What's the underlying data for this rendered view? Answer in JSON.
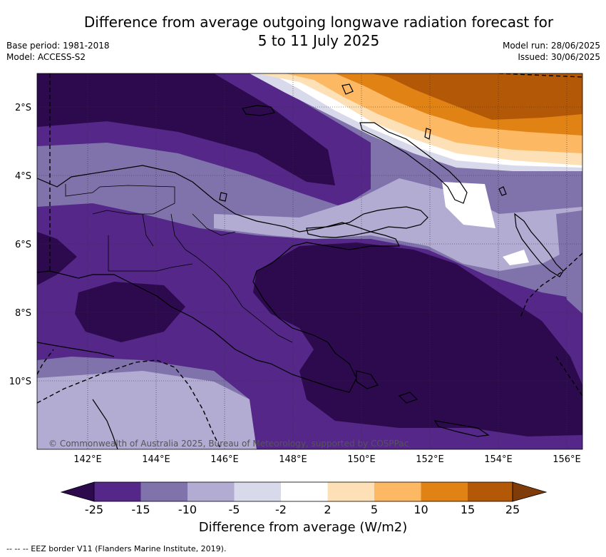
{
  "header": {
    "title_line1": "Difference from average outgoing longwave radiation forecast for",
    "title_line2": "5 to 11 July 2025",
    "base_period": "Base period: 1981-2018",
    "model": "Model: ACCESS-S2",
    "model_run": "Model run: 28/06/2025",
    "issued": "Issued: 30/06/2025"
  },
  "map": {
    "lon_range": [
      140.8,
      156.5
    ],
    "lat_range": [
      -12,
      -1
    ],
    "lat_ticks": [
      "2°S",
      "4°S",
      "6°S",
      "8°S",
      "10°S"
    ],
    "lon_ticks": [
      "142°E",
      "144°E",
      "146°E",
      "148°E",
      "150°E",
      "152°E",
      "154°E",
      "156°E"
    ],
    "copyright": "© Commonwealth of Australia 2025, Bureau of Meteorology, supported by COSPPac",
    "region_shown": "Papua New Guinea",
    "dominant_anomaly": "negative over PNG mainland and Coral Sea, positive north-east"
  },
  "colorbar": {
    "title": "Difference from average (W/m2)",
    "tick_labels": [
      "-25",
      "-15",
      "-10",
      "-5",
      "-2",
      "2",
      "5",
      "10",
      "15",
      "25"
    ],
    "colors": [
      "#2d0a4e",
      "#542788",
      "#8073ac",
      "#b2abd2",
      "#d8daeb",
      "#ffffff",
      "#fee0b6",
      "#fdb863",
      "#e08214",
      "#b35806",
      "#7f3b08"
    ]
  },
  "footnote": "-- -- -- EEZ border V11 (Flanders Marine Institute, 2019)."
}
